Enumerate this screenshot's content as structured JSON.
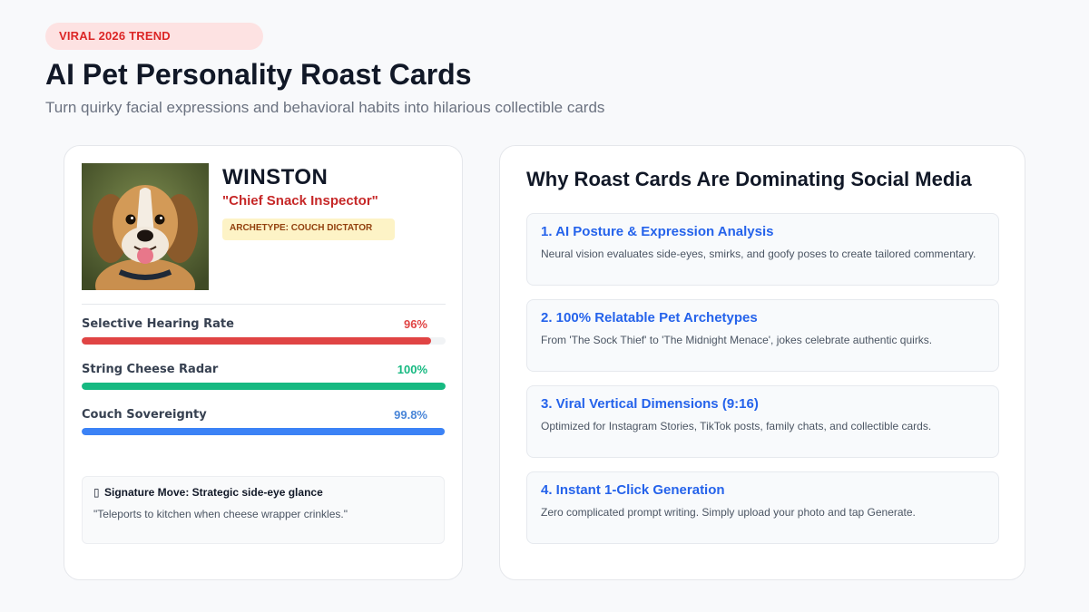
{
  "header": {
    "badge": "VIRAL 2026 TREND",
    "title": "AI Pet Personality Roast Cards",
    "subtitle": "Turn quirky facial expressions and behavioral habits into hilarious collectible cards"
  },
  "pet_card": {
    "name": "WINSTON",
    "title": "\"Chief Snack Inspector\"",
    "archetype": "ARCHETYPE: COUCH DICTATOR",
    "stats": [
      {
        "label": "Selective Hearing Rate",
        "value": "96%",
        "percent": 96,
        "color": "#e04444"
      },
      {
        "label": "String Cheese Radar",
        "value": "100%",
        "percent": 100,
        "color": "#16b981"
      },
      {
        "label": "Couch Sovereignty",
        "value": "99.8%",
        "percent": 99.8,
        "color": "#3b82f6"
      }
    ],
    "signature": {
      "icon": "▯",
      "title": "Signature Move: Strategic side-eye glance",
      "quote": "\"Teleports to kitchen when cheese wrapper crinkles.\""
    }
  },
  "why_card": {
    "heading": "Why Roast Cards Are Dominating Social Media",
    "features": [
      {
        "title": "1. AI Posture & Expression Analysis",
        "desc": "Neural vision evaluates side-eyes, smirks, and goofy poses to create tailored commentary."
      },
      {
        "title": "2. 100% Relatable Pet Archetypes",
        "desc": "From 'The Sock Thief' to 'The Midnight Menace', jokes celebrate authentic quirks."
      },
      {
        "title": "3. Viral Vertical Dimensions (9:16)",
        "desc": "Optimized for Instagram Stories, TikTok posts, family chats, and collectible cards."
      },
      {
        "title": "4. Instant 1-Click Generation",
        "desc": "Zero complicated prompt writing. Simply upload your photo and tap Generate."
      }
    ]
  }
}
